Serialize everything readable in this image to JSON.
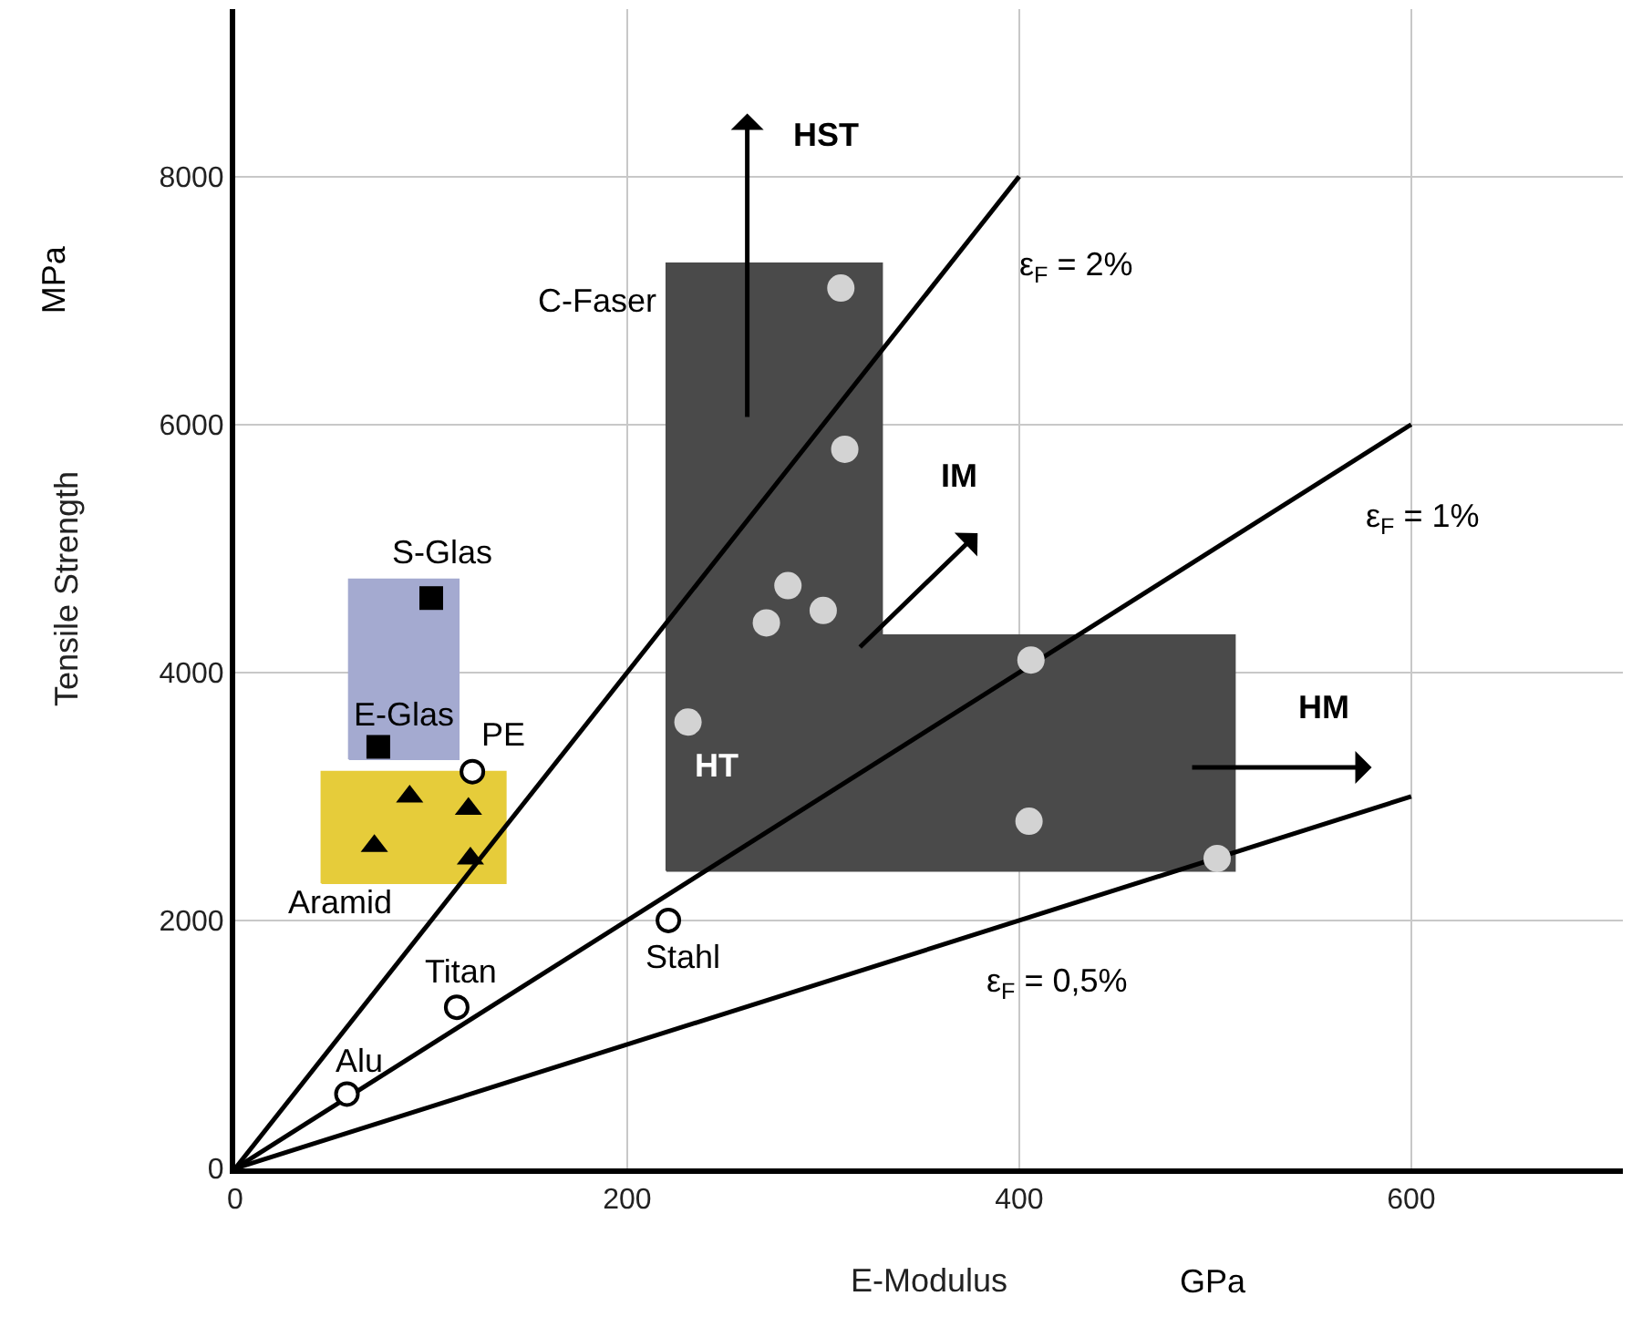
{
  "chart_data": {
    "type": "scatter",
    "xlabel": "E-Modulus",
    "ylabel": "Tensile Strength",
    "xlim": [
      0,
      708
    ],
    "ylim": [
      0,
      9350
    ],
    "xticks": [
      0,
      200,
      400,
      600
    ],
    "yticks": [
      0,
      2000,
      4000,
      6000,
      8000
    ],
    "grid": true,
    "series": [
      {
        "type": "area",
        "color": "#a4aad0",
        "x": [
          58,
          114,
          114,
          58,
          58
        ],
        "values": [
          3300,
          3300,
          4750,
          4750,
          3300
        ]
      },
      {
        "type": "area",
        "color": "#e6cc3a",
        "x": [
          44,
          138,
          138,
          44,
          44
        ],
        "values": [
          2300,
          2300,
          3200,
          3200,
          2300
        ]
      },
      {
        "type": "area",
        "name": "C-Faser",
        "color": "#4a4a4a",
        "x": [
          220,
          510,
          510,
          330,
          330,
          220,
          220
        ],
        "values": [
          2400,
          2400,
          4300,
          4300,
          7300,
          7300,
          2400
        ]
      },
      {
        "type": "line",
        "name": "ε$_{F}$ = 2%",
        "color": "#000000",
        "x": [
          0,
          400
        ],
        "values": [
          0,
          8000
        ]
      },
      {
        "type": "line",
        "name": "ε$_{F}$ = 1%",
        "color": "#000000",
        "x": [
          0,
          600
        ],
        "values": [
          0,
          6000
        ]
      },
      {
        "type": "line",
        "name": "ε$_{F}$ = 0,5%",
        "color": "#000000",
        "x": [
          0,
          600
        ],
        "values": [
          0,
          3000
        ]
      },
      {
        "name": "Alu",
        "color": "#000000",
        "marker": "circle",
        "x": [
          57
        ],
        "values": [
          600
        ]
      },
      {
        "name": "Titan",
        "color": "#000000",
        "marker": "circle",
        "x": [
          113
        ],
        "values": [
          1300
        ]
      },
      {
        "name": "PE",
        "color": "#000000",
        "marker": "circle",
        "x": [
          121
        ],
        "values": [
          3200
        ]
      },
      {
        "name": "Stahl",
        "color": "#000000",
        "marker": "circle",
        "x": [
          221
        ],
        "values": [
          2000
        ]
      },
      {
        "name": "S-Glas",
        "color": "#000000",
        "marker": "square",
        "x": [
          100
        ],
        "values": [
          4600
        ]
      },
      {
        "name": "E-Glas",
        "color": "#000000",
        "marker": "square",
        "x": [
          73
        ],
        "values": [
          3400
        ]
      },
      {
        "name": "Aramid",
        "color": "#000000",
        "marker": "triangle",
        "x": [
          89,
          119,
          71,
          120
        ],
        "values": [
          3000,
          2900,
          2600,
          2500
        ]
      },
      {
        "color": "#d3d3d3",
        "marker": "circle",
        "x": [
          309,
          311,
          282,
          271,
          300,
          231,
          406,
          405,
          501
        ],
        "values": [
          7100,
          5800,
          4700,
          4400,
          4500,
          3600,
          4100,
          2800,
          2500
        ]
      }
    ],
    "annotations": [
      "GPa",
      "MPa",
      "HT",
      "HST",
      "IM",
      "HM"
    ]
  }
}
